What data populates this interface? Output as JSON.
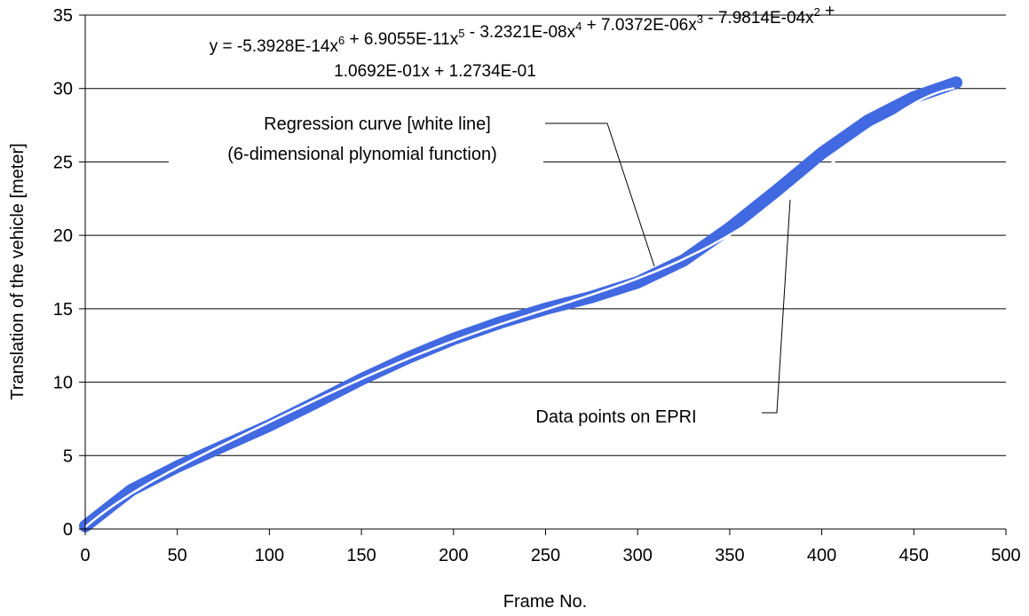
{
  "chart_data": {
    "type": "scatter",
    "xlabel": "Frame No.",
    "ylabel": "Translation of the vehicle [meter]",
    "xlim": [
      0,
      500
    ],
    "ylim": [
      0,
      35
    ],
    "x_ticks": [
      "0",
      "50",
      "100",
      "150",
      "200",
      "250",
      "300",
      "350",
      "400",
      "450",
      "500"
    ],
    "y_ticks": [
      "0",
      "5",
      "10",
      "15",
      "20",
      "25",
      "30",
      "35"
    ],
    "grid": "horizontal",
    "colors": {
      "points": "#4169e1",
      "regression": "#ffffff",
      "grid": "#000000"
    },
    "equation": {
      "line1": [
        {
          "t": "y = -5.3928E-14x"
        },
        {
          "sup": "6"
        },
        {
          "t": " + 6.9055E-11x"
        },
        {
          "sup": "5"
        },
        {
          "t": " - 3.2321E-08x"
        },
        {
          "sup": "4"
        },
        {
          "t": " + 7.0372E-06x"
        },
        {
          "sup": "3"
        },
        {
          "t": " - 7.9814E-04x"
        },
        {
          "sup": "2"
        },
        {
          "t": " +"
        }
      ],
      "line2": "1.0692E-01x + 1.2734E-01"
    },
    "coefficients": [
      0.12734,
      0.10692,
      -0.00079814,
      7.0372e-06,
      -3.2321e-08,
      6.9055e-11,
      -5.3928e-14
    ],
    "regression_label": {
      "line1": "Regression curve [white line]",
      "line2": "(6-dimensional plynomial function)"
    },
    "points_label": "Data points on EPRI",
    "series": [
      {
        "values": [
          [
            0,
            0.2
          ],
          [
            25,
            2.65
          ],
          [
            50,
            4.25
          ],
          [
            75,
            5.65
          ],
          [
            100,
            7.05
          ],
          [
            125,
            8.6
          ],
          [
            150,
            10.2
          ],
          [
            175,
            11.65
          ],
          [
            200,
            12.95
          ],
          [
            225,
            14.05
          ],
          [
            250,
            15.0
          ],
          [
            275,
            15.8
          ],
          [
            300,
            16.8
          ],
          [
            325,
            18.3
          ],
          [
            350,
            20.5
          ],
          [
            375,
            23.0
          ],
          [
            400,
            25.6
          ],
          [
            425,
            27.8
          ],
          [
            450,
            29.4
          ],
          [
            473,
            30.4
          ]
        ]
      }
    ]
  }
}
